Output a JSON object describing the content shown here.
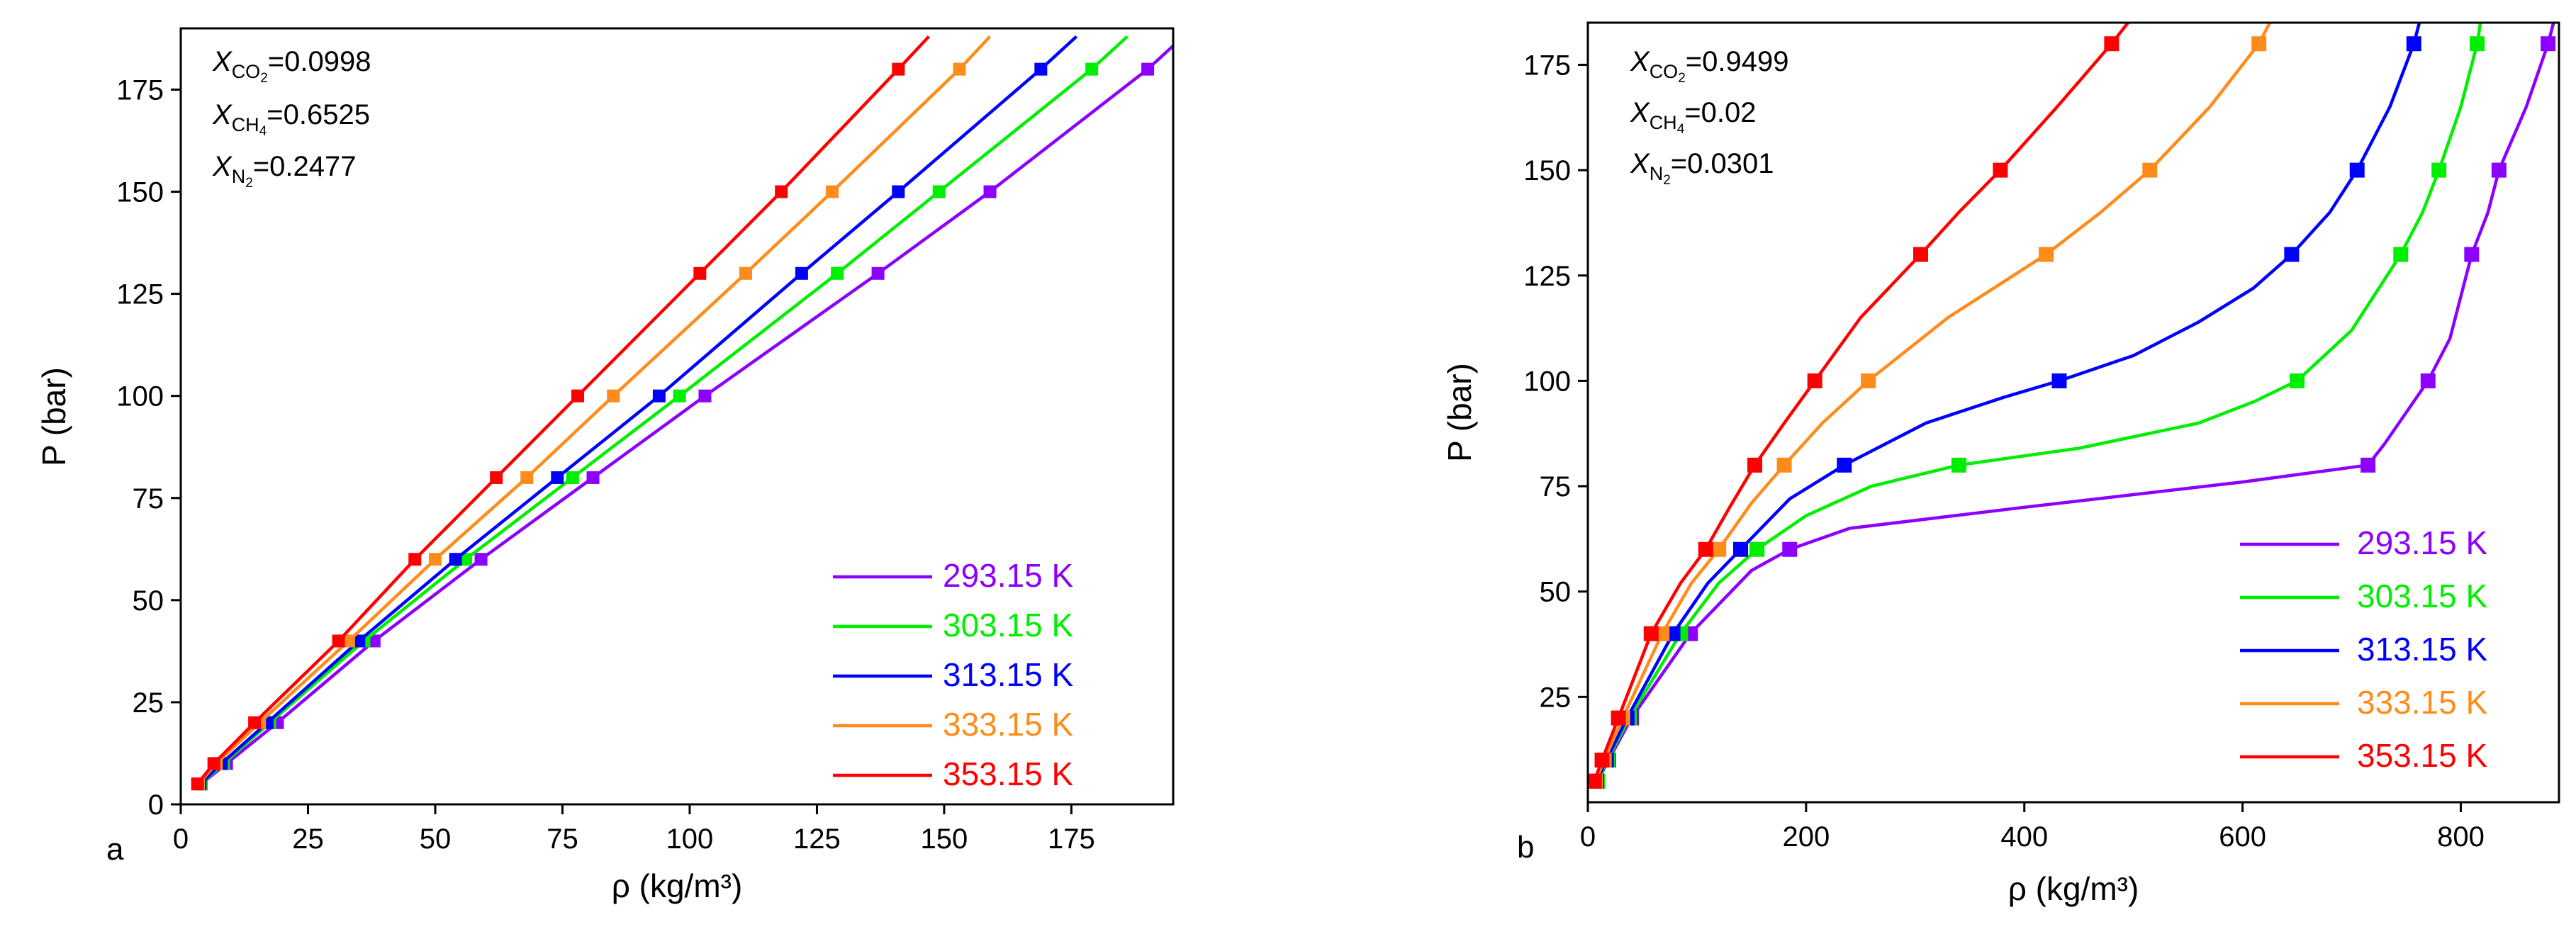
{
  "chart_data": [
    {
      "panel": "a",
      "type": "line",
      "xlabel": "ρ (kg/m³)",
      "ylabel": "P (bar)",
      "xlim": [
        0,
        195
      ],
      "ylim": [
        0,
        190
      ],
      "xticks": [
        0,
        25,
        50,
        75,
        100,
        125,
        150,
        175
      ],
      "yticks": [
        0,
        25,
        50,
        75,
        100,
        125,
        150,
        175
      ],
      "composition": [
        {
          "species": "CO",
          "sub": "2",
          "value": "=0.0998"
        },
        {
          "species": "CH",
          "sub": "4",
          "value": "=0.6525"
        },
        {
          "species": "N",
          "sub": "2",
          "value": "=0.2477"
        }
      ],
      "legend_position": "bottom-right",
      "series": [
        {
          "name": "293.15 K",
          "color": "#8B00FF",
          "points": [
            [
              4,
              5
            ],
            [
              9,
              10
            ],
            [
              19,
              20
            ],
            [
              38,
              40
            ],
            [
              59,
              60
            ],
            [
              81,
              80
            ],
            [
              103,
              100
            ],
            [
              137,
              130
            ],
            [
              159,
              150
            ],
            [
              190,
              180
            ]
          ],
          "line_to": [
            [
              197,
              188
            ]
          ]
        },
        {
          "name": "303.15 K",
          "color": "#00EE00",
          "points": [
            [
              3.9,
              5
            ],
            [
              8.4,
              10
            ],
            [
              17.5,
              20
            ],
            [
              36,
              40
            ],
            [
              56,
              60
            ],
            [
              77,
              80
            ],
            [
              98,
              100
            ],
            [
              129,
              130
            ],
            [
              149,
              150
            ],
            [
              179,
              180
            ]
          ],
          "line_to": [
            [
              186,
              188
            ]
          ]
        },
        {
          "name": "313.15 K",
          "color": "#0000FF",
          "points": [
            [
              3.8,
              5
            ],
            [
              8,
              10
            ],
            [
              17,
              20
            ],
            [
              35,
              40
            ],
            [
              54,
              60
            ],
            [
              74,
              80
            ],
            [
              94,
              100
            ],
            [
              122,
              130
            ],
            [
              141,
              150
            ],
            [
              169,
              180
            ]
          ],
          "line_to": [
            [
              176,
              188
            ]
          ]
        },
        {
          "name": "333.15 K",
          "color": "#FF8C1A",
          "points": [
            [
              3.5,
              5
            ],
            [
              7,
              10
            ],
            [
              15.5,
              20
            ],
            [
              33,
              40
            ],
            [
              50,
              60
            ],
            [
              68,
              80
            ],
            [
              85,
              100
            ],
            [
              111,
              130
            ],
            [
              128,
              150
            ],
            [
              153,
              180
            ]
          ],
          "line_to": [
            [
              159,
              188
            ]
          ]
        },
        {
          "name": "353.15 K",
          "color": "#FF0000",
          "points": [
            [
              3.3,
              5
            ],
            [
              6.5,
              10
            ],
            [
              14.5,
              20
            ],
            [
              31,
              40
            ],
            [
              46,
              60
            ],
            [
              62,
              80
            ],
            [
              78,
              100
            ],
            [
              102,
              130
            ],
            [
              118,
              150
            ],
            [
              141,
              180
            ]
          ],
          "line_to": [
            [
              147,
              188
            ]
          ]
        }
      ]
    },
    {
      "panel": "b",
      "type": "line",
      "xlabel": "ρ (kg/m³)",
      "ylabel": "P (bar)",
      "xlim": [
        0,
        890
      ],
      "ylim": [
        0,
        185
      ],
      "xticks": [
        0,
        200,
        400,
        600,
        800
      ],
      "yticks": [
        25,
        50,
        75,
        100,
        125,
        150,
        175
      ],
      "composition": [
        {
          "species": "CO",
          "sub": "2",
          "value": "=0.9499"
        },
        {
          "species": "CH",
          "sub": "4",
          "value": "=0.02"
        },
        {
          "species": "N",
          "sub": "2",
          "value": "=0.0301"
        }
      ],
      "legend_position": "bottom-right",
      "series": [
        {
          "name": "293.15 K",
          "color": "#8B00FF",
          "points": [
            [
              9,
              5
            ],
            [
              19,
              10
            ],
            [
              40,
              20
            ],
            [
              94,
              40
            ],
            [
              185,
              60
            ],
            [
              715,
              80
            ],
            [
              770,
              100
            ],
            [
              810,
              130
            ],
            [
              835,
              150
            ],
            [
              880,
              180
            ]
          ],
          "curve": [
            [
              9,
              5
            ],
            [
              19,
              10
            ],
            [
              40,
              20
            ],
            [
              94,
              40
            ],
            [
              150,
              55
            ],
            [
              185,
              60
            ],
            [
              240,
              65
            ],
            [
              400,
              70
            ],
            [
              600,
              76
            ],
            [
              715,
              80
            ],
            [
              730,
              85
            ],
            [
              770,
              100
            ],
            [
              790,
              110
            ],
            [
              810,
              130
            ],
            [
              825,
              140
            ],
            [
              835,
              150
            ],
            [
              860,
              165
            ],
            [
              880,
              180
            ],
            [
              885,
              185
            ]
          ]
        },
        {
          "name": "303.15 K",
          "color": "#00EE00",
          "points": [
            [
              9,
              5
            ],
            [
              18,
              10
            ],
            [
              38,
              20
            ],
            [
              85,
              40
            ],
            [
              155,
              60
            ],
            [
              340,
              80
            ],
            [
              650,
              100
            ],
            [
              745,
              130
            ],
            [
              780,
              150
            ],
            [
              815,
              180
            ]
          ],
          "curve": [
            [
              9,
              5
            ],
            [
              18,
              10
            ],
            [
              38,
              20
            ],
            [
              85,
              40
            ],
            [
              120,
              52
            ],
            [
              155,
              60
            ],
            [
              200,
              68
            ],
            [
              260,
              75
            ],
            [
              340,
              80
            ],
            [
              450,
              84
            ],
            [
              560,
              90
            ],
            [
              610,
              95
            ],
            [
              650,
              100
            ],
            [
              700,
              112
            ],
            [
              745,
              130
            ],
            [
              765,
              140
            ],
            [
              780,
              150
            ],
            [
              800,
              165
            ],
            [
              815,
              180
            ],
            [
              818,
              185
            ]
          ]
        },
        {
          "name": "313.15 K",
          "color": "#0000FF",
          "points": [
            [
              8,
              5
            ],
            [
              17,
              10
            ],
            [
              36,
              20
            ],
            [
              78,
              40
            ],
            [
              140,
              60
            ],
            [
              235,
              80
            ],
            [
              432,
              100
            ],
            [
              645,
              130
            ],
            [
              705,
              150
            ],
            [
              757,
              180
            ]
          ],
          "curve": [
            [
              8,
              5
            ],
            [
              17,
              10
            ],
            [
              36,
              20
            ],
            [
              78,
              40
            ],
            [
              110,
              52
            ],
            [
              140,
              60
            ],
            [
              185,
              72
            ],
            [
              235,
              80
            ],
            [
              310,
              90
            ],
            [
              380,
              96
            ],
            [
              432,
              100
            ],
            [
              500,
              106
            ],
            [
              560,
              114
            ],
            [
              610,
              122
            ],
            [
              645,
              130
            ],
            [
              680,
              140
            ],
            [
              705,
              150
            ],
            [
              735,
              165
            ],
            [
              757,
              180
            ],
            [
              762,
              185
            ]
          ]
        },
        {
          "name": "333.15 K",
          "color": "#FF8C1A",
          "points": [
            [
              7,
              5
            ],
            [
              15,
              10
            ],
            [
              32,
              20
            ],
            [
              68,
              40
            ],
            [
              120,
              60
            ],
            [
              180,
              80
            ],
            [
              257,
              100
            ],
            [
              420,
              130
            ],
            [
              515,
              150
            ],
            [
              615,
              180
            ]
          ],
          "curve": [
            [
              7,
              5
            ],
            [
              15,
              10
            ],
            [
              32,
              20
            ],
            [
              68,
              40
            ],
            [
              95,
              52
            ],
            [
              120,
              60
            ],
            [
              150,
              71
            ],
            [
              180,
              80
            ],
            [
              215,
              90
            ],
            [
              257,
              100
            ],
            [
              330,
              115
            ],
            [
              420,
              130
            ],
            [
              470,
              140
            ],
            [
              515,
              150
            ],
            [
              570,
              165
            ],
            [
              615,
              180
            ],
            [
              625,
              185
            ]
          ]
        },
        {
          "name": "353.15 K",
          "color": "#FF0000",
          "points": [
            [
              6,
              5
            ],
            [
              13,
              10
            ],
            [
              28,
              20
            ],
            [
              58,
              40
            ],
            [
              108,
              60
            ],
            [
              153,
              80
            ],
            [
              208,
              100
            ],
            [
              305,
              130
            ],
            [
              378,
              150
            ],
            [
              480,
              180
            ]
          ],
          "curve": [
            [
              6,
              5
            ],
            [
              13,
              10
            ],
            [
              28,
              20
            ],
            [
              58,
              40
            ],
            [
              85,
              52
            ],
            [
              108,
              60
            ],
            [
              130,
              70
            ],
            [
              153,
              80
            ],
            [
              180,
              90
            ],
            [
              208,
              100
            ],
            [
              250,
              115
            ],
            [
              305,
              130
            ],
            [
              340,
              140
            ],
            [
              378,
              150
            ],
            [
              430,
              165
            ],
            [
              480,
              180
            ],
            [
              495,
              185
            ]
          ]
        }
      ]
    }
  ]
}
